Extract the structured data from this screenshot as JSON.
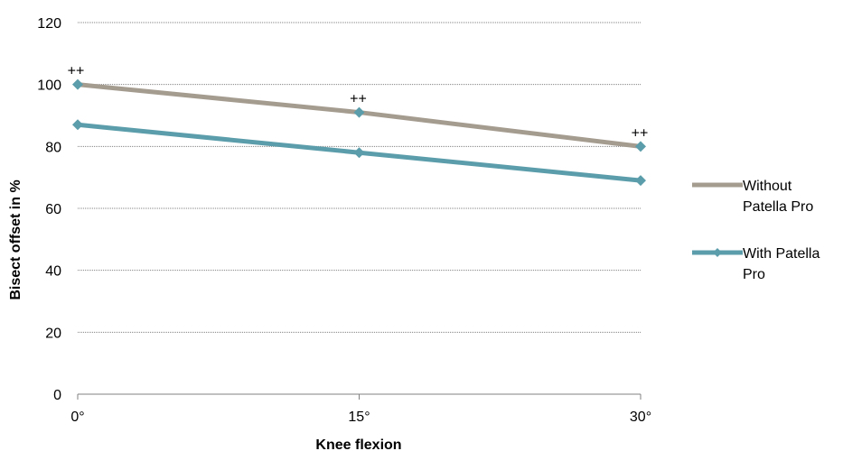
{
  "chart_data": {
    "type": "line",
    "categories": [
      "0°",
      "15°",
      "30°"
    ],
    "series": [
      {
        "name": "Without Patella Pro",
        "legend_lines": [
          "Without",
          "Patella Pro"
        ],
        "values": [
          100,
          91,
          80
        ],
        "color": "#A59C90",
        "annotations": [
          "++",
          "++",
          "++"
        ]
      },
      {
        "name": "With Patella Pro",
        "legend_lines": [
          "With Patella",
          "Pro"
        ],
        "values": [
          87,
          78,
          69
        ],
        "color": "#5B9DAA",
        "annotations": []
      }
    ],
    "xlabel": "Knee flexion",
    "ylabel": "Bisect offset in %",
    "ylim": [
      0,
      120
    ],
    "yticks": [
      0,
      20,
      40,
      60,
      80,
      100,
      120
    ],
    "grid": true,
    "legend": "right",
    "grid_color": "#808080"
  }
}
